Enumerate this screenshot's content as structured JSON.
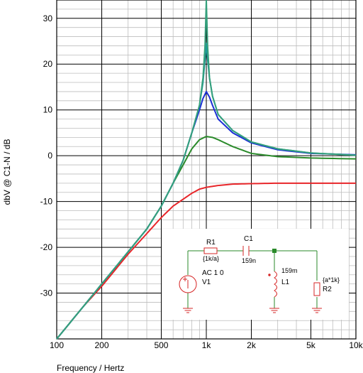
{
  "chart_data": {
    "type": "line",
    "xscale": "log",
    "xlim": [
      100,
      10000
    ],
    "ylim": [
      -40,
      34
    ],
    "xticks": [
      100,
      200,
      500,
      1000,
      2000,
      5000,
      10000
    ],
    "xtick_labels": [
      "100",
      "200",
      "500",
      "1k",
      "2k",
      "5k",
      "10k"
    ],
    "yticks": [
      30,
      20,
      10,
      0,
      -10,
      -20,
      -30
    ],
    "ytick_labels": [
      "30",
      "20",
      "10",
      "0",
      "-10",
      "-20",
      "-30"
    ],
    "xlabel": "Frequency / Hertz",
    "ylabel": "dbV @ C1-N / dB",
    "grid": true,
    "series": [
      {
        "color": "#e8262a",
        "x": [
          100,
          150,
          200,
          300,
          400,
          500,
          600,
          700,
          800,
          900,
          1000,
          1200,
          1500,
          2000,
          3000,
          5000,
          10000
        ],
        "y": [
          -40,
          -33,
          -28.5,
          -21.5,
          -17,
          -13.5,
          -11,
          -9.5,
          -8.2,
          -7.3,
          -6.9,
          -6.5,
          -6.2,
          -6.1,
          -6,
          -6,
          -6
        ]
      },
      {
        "color": "#2a8a2a",
        "x": [
          100,
          150,
          200,
          300,
          400,
          500,
          600,
          700,
          800,
          900,
          1000,
          1100,
          1200,
          1500,
          2000,
          3000,
          5000,
          10000
        ],
        "y": [
          -40,
          -33,
          -28,
          -21,
          -16,
          -11,
          -6,
          -2,
          1.5,
          3.5,
          4.2,
          4,
          3.5,
          2,
          0.5,
          -0.2,
          -0.5,
          -0.7
        ]
      },
      {
        "color": "#1b2fd6",
        "x": [
          100,
          150,
          200,
          300,
          400,
          500,
          600,
          700,
          800,
          900,
          950,
          1000,
          1050,
          1100,
          1200,
          1500,
          2000,
          3000,
          5000,
          10000
        ],
        "y": [
          -40,
          -33,
          -28,
          -21,
          -16,
          -11,
          -6,
          -1,
          5,
          10,
          12.5,
          14,
          12.8,
          11,
          8,
          5,
          2.8,
          1.3,
          0.5,
          0.2
        ]
      },
      {
        "color": "#1f9a9a",
        "x": [
          100,
          150,
          200,
          300,
          400,
          500,
          600,
          700,
          800,
          900,
          950,
          980,
          1000,
          1020,
          1050,
          1100,
          1200,
          1500,
          2000,
          3000,
          5000,
          10000
        ],
        "y": [
          -40,
          -33,
          -28,
          -21,
          -16,
          -11,
          -6,
          -1,
          5,
          11,
          16,
          21,
          24.5,
          21,
          17,
          13,
          9,
          5.5,
          3,
          1.5,
          0.6,
          0.1
        ]
      },
      {
        "color": "#35a07c",
        "x": [
          100,
          150,
          200,
          300,
          400,
          500,
          600,
          700,
          800,
          900,
          950,
          980,
          1000,
          1020,
          1050,
          1100,
          1200,
          1500,
          2000,
          3000,
          5000,
          10000
        ],
        "y": [
          -40,
          -33,
          -28,
          -21,
          -16,
          -11,
          -6,
          -1,
          5,
          11,
          17,
          24,
          34,
          24,
          17,
          13,
          9,
          5.5,
          3,
          1.5,
          0.6,
          0.1
        ]
      }
    ]
  },
  "schematic": {
    "r1_name": "R1",
    "r1_value": "{1k/a}",
    "c1_name": "C1",
    "c1_value": "159n",
    "source_label": "AC 1 0",
    "source_name": "V1",
    "l1_value": "159m",
    "l1_name": "L1",
    "r2_value": "{a*1k}",
    "r2_name": "R2",
    "plus_sign": "+"
  }
}
